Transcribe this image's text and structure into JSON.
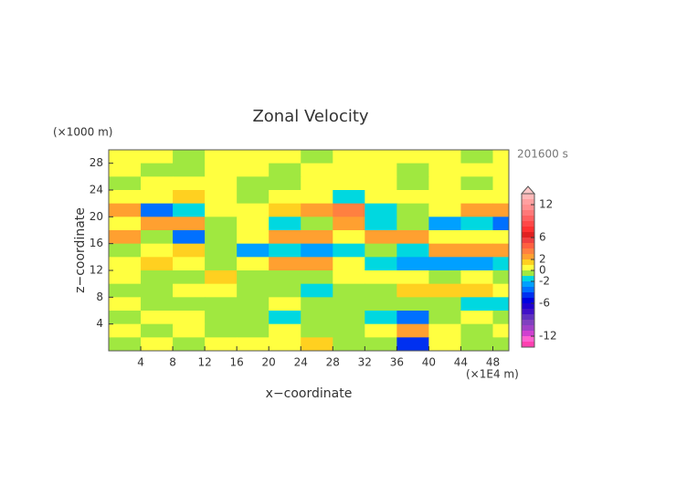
{
  "chart_data": {
    "type": "heatmap",
    "title": "Zonal Velocity",
    "x_label": "x−coordinate",
    "y_label": "z−coordinate",
    "x_unit": "(×1E4 m)",
    "y_unit": "(×1000 m)",
    "time_label": "201600 s",
    "x": [
      2,
      6,
      10,
      14,
      18,
      22,
      26,
      30,
      34,
      38,
      42,
      46,
      50
    ],
    "z": [
      29,
      27,
      25,
      23,
      21,
      19,
      17,
      15,
      13,
      11,
      9,
      7,
      5,
      3,
      1
    ],
    "values": [
      [
        0.5,
        0.5,
        -0.5,
        0.5,
        0.5,
        0.5,
        -0.5,
        0.5,
        0.5,
        0.5,
        0.5,
        -0.5,
        0.5
      ],
      [
        0.5,
        -0.5,
        -0.5,
        0.5,
        0.5,
        -0.5,
        0.5,
        0.5,
        0.5,
        -0.5,
        0.5,
        0.5,
        0.5
      ],
      [
        -0.5,
        0.5,
        0.5,
        0.5,
        -0.5,
        -0.5,
        0.5,
        0.5,
        0.5,
        -0.5,
        0.5,
        -0.5,
        0.5
      ],
      [
        0.5,
        0.5,
        1.5,
        0.5,
        -0.5,
        0.5,
        0.5,
        -1.5,
        0.5,
        0.5,
        0.5,
        0.5,
        0.5
      ],
      [
        2.5,
        -3.5,
        -1.5,
        0.5,
        0.5,
        1.5,
        2.5,
        3.5,
        -1.5,
        -0.5,
        0.5,
        2.5,
        2.5
      ],
      [
        0.5,
        2.5,
        2.5,
        -0.5,
        0.5,
        -1.5,
        -0.5,
        2.5,
        -1.5,
        -0.5,
        -2.5,
        -1.5,
        -3.5
      ],
      [
        2.5,
        -0.5,
        -3.5,
        -0.5,
        0.5,
        2.5,
        2.5,
        0.5,
        2.5,
        2.5,
        0.5,
        0.5,
        0.5
      ],
      [
        -0.5,
        0.5,
        1.5,
        -0.5,
        -2.5,
        -1.5,
        -2.5,
        -1.5,
        -0.5,
        -1.5,
        2.5,
        2.5,
        2.5
      ],
      [
        0.5,
        1.5,
        0.5,
        -0.5,
        0.5,
        2.5,
        2.5,
        0.5,
        -1.5,
        -2.5,
        -2.5,
        -2.5,
        -1.5
      ],
      [
        0.5,
        -0.5,
        -0.5,
        1.5,
        -0.5,
        -0.5,
        -0.5,
        0.5,
        0.5,
        0.5,
        -0.5,
        0.5,
        -0.5
      ],
      [
        -0.5,
        -0.5,
        0.5,
        0.5,
        -0.5,
        -0.5,
        -1.5,
        -0.5,
        -0.5,
        1.5,
        1.5,
        1.5,
        0.5
      ],
      [
        0.5,
        -0.5,
        -0.5,
        -0.5,
        -0.5,
        0.5,
        -0.5,
        -0.5,
        -0.5,
        -0.5,
        -0.5,
        -1.5,
        -1.5
      ],
      [
        -0.5,
        0.5,
        0.5,
        -0.5,
        -0.5,
        -1.5,
        -0.5,
        -0.5,
        -1.5,
        -3.5,
        -0.5,
        0.5,
        -0.5
      ],
      [
        0.5,
        -0.5,
        0.5,
        -0.5,
        -0.5,
        0.5,
        -0.5,
        -0.5,
        0.5,
        2.5,
        0.5,
        -0.5,
        0.5
      ],
      [
        -0.5,
        0.5,
        -0.5,
        0.5,
        0.5,
        0.5,
        1.5,
        -0.5,
        -0.5,
        -4.5,
        0.5,
        -0.5,
        -0.5
      ]
    ],
    "xlim": [
      0,
      50
    ],
    "xticks": [
      4,
      8,
      12,
      16,
      20,
      24,
      28,
      32,
      36,
      40,
      44,
      48
    ],
    "ylim": [
      0,
      30
    ],
    "yticks": [
      4,
      8,
      12,
      16,
      20,
      24,
      28
    ],
    "colorbar": {
      "lim": [
        -14,
        14
      ],
      "step": 1,
      "ticks": [
        12,
        6,
        2,
        0,
        -2,
        -6,
        -12
      ],
      "colors": [
        "#ff40b0",
        "#ff60d0",
        "#d040d0",
        "#a040c8",
        "#8040c0",
        "#6030c0",
        "#4010c8",
        "#2000d0",
        "#0000e0",
        "#0030f0",
        "#0070ff",
        "#00a0ff",
        "#00d8e0",
        "#a0e840",
        "#ffff40",
        "#ffd020",
        "#ffa030",
        "#ff8040",
        "#ff6040",
        "#f04040",
        "#e02020",
        "#ff3030",
        "#ff4848",
        "#ff6060",
        "#ff7878",
        "#ff9090",
        "#ffa0a0",
        "#ffb8b8"
      ],
      "over_color": "#ffc8c8"
    }
  }
}
